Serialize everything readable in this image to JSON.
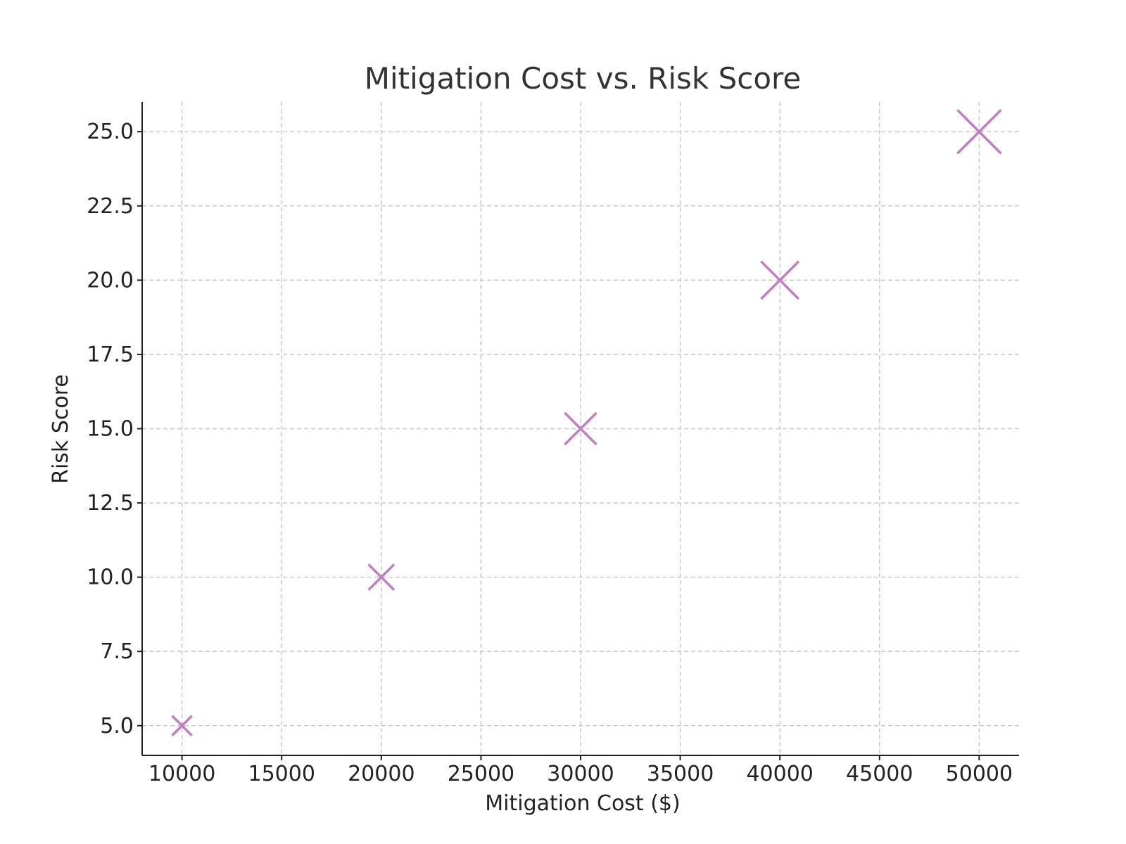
{
  "chart_data": {
    "type": "scatter",
    "title": "Mitigation Cost vs. Risk Score",
    "xlabel": "Mitigation Cost ($)",
    "ylabel": "Risk Score",
    "xlim": [
      8000,
      52000
    ],
    "ylim": [
      4.0,
      26.0
    ],
    "x_ticks": [
      10000,
      15000,
      20000,
      25000,
      30000,
      35000,
      40000,
      45000,
      50000
    ],
    "x_tick_labels": [
      "10000",
      "15000",
      "20000",
      "25000",
      "30000",
      "35000",
      "40000",
      "45000",
      "50000"
    ],
    "y_ticks": [
      5.0,
      7.5,
      10.0,
      12.5,
      15.0,
      17.5,
      20.0,
      22.5,
      25.0
    ],
    "y_tick_labels": [
      "5.0",
      "7.5",
      "10.0",
      "12.5",
      "15.0",
      "17.5",
      "20.0",
      "22.5",
      "25.0"
    ],
    "grid": true,
    "marker": "x",
    "marker_color": "#BF80C0",
    "marker_size_encodes": "x",
    "points": [
      {
        "x": 10000,
        "y": 5.0
      },
      {
        "x": 20000,
        "y": 10.0
      },
      {
        "x": 30000,
        "y": 15.0
      },
      {
        "x": 40000,
        "y": 20.0
      },
      {
        "x": 50000,
        "y": 25.0
      }
    ]
  }
}
